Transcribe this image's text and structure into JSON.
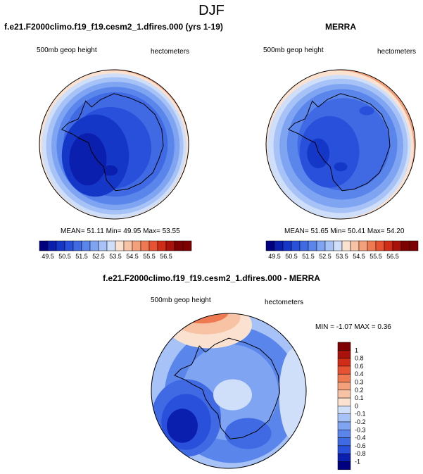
{
  "season": "DJF",
  "palette": {
    "blues": [
      "#000080",
      "#0a1fae",
      "#1437c8",
      "#2850da",
      "#3f6ae4",
      "#5a86ec",
      "#7ea4f2",
      "#a6c2f6",
      "#cfdef9"
    ],
    "reds": [
      "#fbe2d0",
      "#f8c2a4",
      "#f4a07a",
      "#ef7a52",
      "#e65232",
      "#d02c17",
      "#a8120a",
      "#7e0000"
    ],
    "coast": "#000000"
  },
  "chart_data": [
    {
      "type": "heatmap",
      "panel": "model",
      "title": "f.e21.F2000climo.f19_f19.cesm2_1.dfires.000 (yrs 1-19)",
      "field_label": "500mb geop height",
      "units": "hectometers",
      "stats": {
        "text": "MEAN=  51.11  Min=  49.95  Max=  53.55",
        "mean": 51.11,
        "min": 49.95,
        "max": 53.55
      },
      "colorbar_ticks": [
        "49.5",
        "50.5",
        "51.5",
        "52.5",
        "53.5",
        "54.5",
        "55.5",
        "56.5"
      ],
      "colorbar_levels": 18
    },
    {
      "type": "heatmap",
      "panel": "obs",
      "title": "MERRA",
      "field_label": "500mb geop height",
      "units": "hectometers",
      "stats": {
        "text": "MEAN=  51.65  Min=  50.41  Max=  54.20",
        "mean": 51.65,
        "min": 50.41,
        "max": 54.2
      },
      "colorbar_ticks": [
        "49.5",
        "50.5",
        "51.5",
        "52.5",
        "53.5",
        "54.5",
        "55.5",
        "56.5"
      ],
      "colorbar_levels": 18
    },
    {
      "type": "heatmap",
      "panel": "difference",
      "title": "f.e21.F2000climo.f19_f19.cesm2_1.dfires.000 - MERRA",
      "field_label": "500mb geop height",
      "units": "hectometers",
      "stats": {
        "text": "MIN =  -1.07  MAX =   0.36",
        "min": -1.07,
        "max": 0.36
      },
      "colorbar_ticks": [
        "1",
        "0.8",
        "0.6",
        "0.4",
        "0.3",
        "0.2",
        "0.1",
        "0",
        "-0.1",
        "-0.2",
        "-0.3",
        "-0.4",
        "-0.6",
        "-0.8",
        "-1"
      ]
    }
  ]
}
